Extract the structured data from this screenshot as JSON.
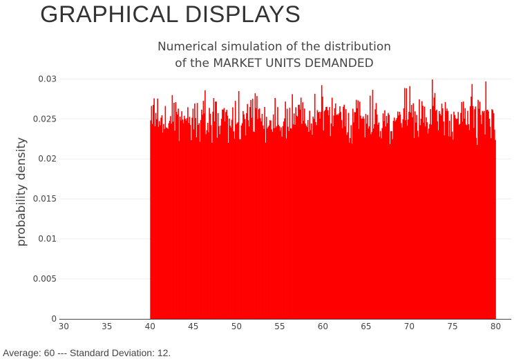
{
  "page": {
    "heading": "GRAPHICAL DISPLAYS"
  },
  "chart_data": {
    "type": "bar",
    "title_line1": "Numerical simulation of the distribution",
    "title_line2": "of the MARKET UNITS DEMANDED",
    "xlabel": "",
    "ylabel": "probability density",
    "xlim": [
      29.5,
      81.8
    ],
    "ylim": [
      0,
      0.0302
    ],
    "x_ticks": [
      "30",
      "35",
      "40",
      "45",
      "50",
      "55",
      "60",
      "65",
      "70",
      "75",
      "80"
    ],
    "x_tick_values": [
      30,
      35,
      40,
      45,
      50,
      55,
      60,
      65,
      70,
      75,
      80
    ],
    "y_ticks": [
      "0",
      "0.005",
      "0.01",
      "0.015",
      "0.02",
      "0.025",
      "0.03"
    ],
    "y_tick_values": [
      0,
      0.005,
      0.01,
      0.015,
      0.02,
      0.025,
      0.03
    ],
    "bin_start": 40,
    "bin_end": 80,
    "bin_count": 400,
    "approx_density": 0.025,
    "density_min": 0.0195,
    "density_max": 0.0302,
    "grid": true,
    "bar_color": "#ff0000"
  },
  "footer": {
    "summary": "Average: 60 --- Standard Deviation: 12."
  }
}
